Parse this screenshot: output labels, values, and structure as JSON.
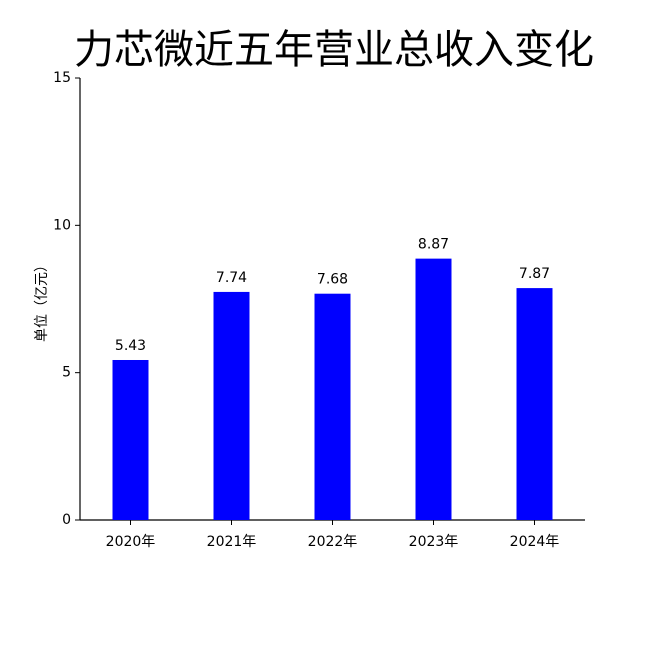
{
  "chart_data": {
    "type": "bar",
    "title": "力芯微近五年营业总收入变化",
    "y_label": "单位（亿元）",
    "categories": [
      "2020年",
      "2021年",
      "2022年",
      "2023年",
      "2024年"
    ],
    "values": [
      5.43,
      7.74,
      7.68,
      8.87,
      7.87
    ],
    "color": "#0000ff",
    "ylim": [
      0,
      15
    ],
    "yticks": [
      0,
      5,
      10,
      15
    ],
    "grid": false
  }
}
